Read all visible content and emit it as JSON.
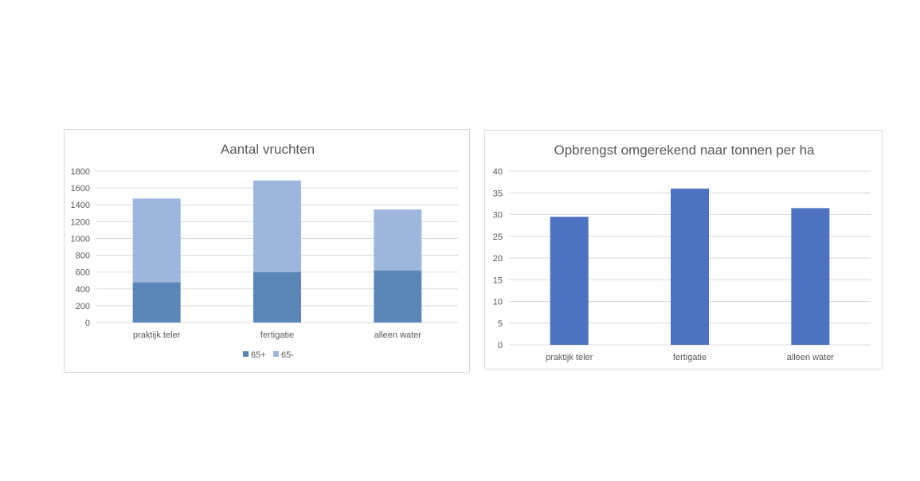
{
  "chart_data": [
    {
      "type": "bar",
      "stacked": true,
      "title": "Aantal vruchten",
      "categories": [
        "praktijk teler",
        "fertigatie",
        "alleen water"
      ],
      "series": [
        {
          "name": "65+",
          "values": [
            480,
            600,
            620
          ],
          "color": "#5b87b8"
        },
        {
          "name": "65-",
          "values": [
            995,
            1090,
            725
          ],
          "color": "#9db6dc"
        }
      ],
      "ylim": [
        0,
        1800
      ],
      "yticks": [
        0,
        200,
        400,
        600,
        800,
        1000,
        1200,
        1400,
        1600,
        1800
      ],
      "grid": true,
      "legend": "bottom",
      "xlabel": "",
      "ylabel": ""
    },
    {
      "type": "bar",
      "title": "Opbrengst omgerekend naar tonnen per ha",
      "categories": [
        "praktijk teler",
        "fertigatie",
        "alleen water"
      ],
      "series": [
        {
          "name": "",
          "values": [
            29.5,
            36,
            31.5
          ],
          "color": "#4d72c2"
        }
      ],
      "ylim": [
        0,
        40
      ],
      "yticks": [
        0,
        5,
        10,
        15,
        20,
        25,
        30,
        35,
        40
      ],
      "grid": true,
      "legend": "none",
      "xlabel": "",
      "ylabel": ""
    }
  ]
}
